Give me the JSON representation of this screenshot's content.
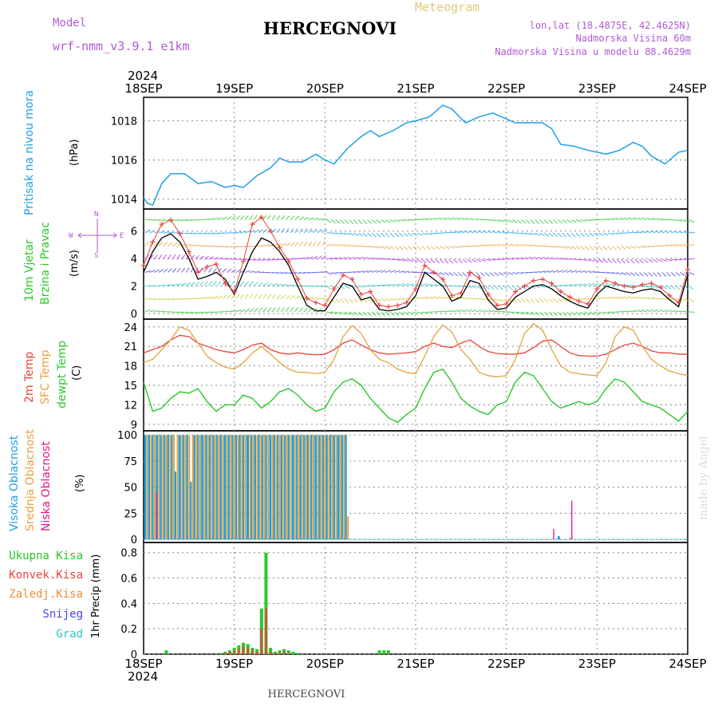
{
  "header": {
    "title": "HERCEGNOVI",
    "subtitle": "Meteogram",
    "model_label": "Model",
    "model_name": "wrf-nmm_v3.9.1 e1km",
    "lonlat": "lon,lat (18.4875E, 42.4625N)",
    "altitude": "Nadmorska Visina 60m",
    "model_altitude": "Nadmorska Visina u modelu 88.4629m",
    "year_top": "2024",
    "year_bottom": "2024",
    "footer": "HERCEGNOVI",
    "watermark": "made by Angel"
  },
  "colors": {
    "pressure": "#1ea0e6",
    "wind": "#000000",
    "gust": "#e8453c",
    "temp2m": "#e8453c",
    "sfc": "#e6a23c",
    "dewpt": "#28c828",
    "high_cloud": "#1ea0e6",
    "mid_cloud": "#e6a23c",
    "low_cloud": "#e6148c",
    "total_precip": "#28c828",
    "conv_precip": "#e8453c",
    "frozen_precip": "#f08c32",
    "snow": "#4646e6",
    "hail": "#28c8c8"
  },
  "chart_data": [
    {
      "type": "line",
      "panel": "pressure",
      "ylabel_left": "Pritisak na nivou mora",
      "unit": "(hPa)",
      "x_ticks": [
        "18SEP",
        "19SEP",
        "20SEP",
        "21SEP",
        "22SEP",
        "23SEP",
        "24SEP"
      ],
      "y_ticks": [
        1014,
        1016,
        1018
      ],
      "ylim": [
        1013.5,
        1019.2
      ],
      "grid": true,
      "x_days": [
        0.0,
        0.04,
        0.1,
        0.2,
        0.3,
        0.45,
        0.6,
        0.75,
        0.9,
        1.0,
        1.1,
        1.25,
        1.4,
        1.5,
        1.6,
        1.75,
        1.9,
        2.0,
        2.1,
        2.25,
        2.4,
        2.5,
        2.6,
        2.75,
        2.9,
        3.0,
        3.15,
        3.3,
        3.4,
        3.55,
        3.7,
        3.85,
        4.0,
        4.1,
        4.25,
        4.4,
        4.5,
        4.6,
        4.75,
        4.9,
        5.0,
        5.1,
        5.25,
        5.4,
        5.5,
        5.6,
        5.75,
        5.9,
        6.0
      ],
      "series": [
        {
          "values": [
            1014.1,
            1013.8,
            1013.7,
            1014.8,
            1015.3,
            1015.3,
            1014.8,
            1014.9,
            1014.6,
            1014.7,
            1014.6,
            1015.2,
            1015.6,
            1016.1,
            1015.9,
            1015.9,
            1016.3,
            1016.0,
            1015.8,
            1016.6,
            1017.2,
            1017.5,
            1017.2,
            1017.5,
            1017.9,
            1018.0,
            1018.2,
            1018.8,
            1018.6,
            1017.9,
            1018.2,
            1018.4,
            1018.1,
            1017.9,
            1017.9,
            1017.9,
            1017.6,
            1016.8,
            1016.7,
            1016.5,
            1016.4,
            1016.3,
            1016.5,
            1016.9,
            1016.7,
            1016.2,
            1015.8,
            1016.4,
            1016.5
          ]
        }
      ]
    },
    {
      "type": "line",
      "panel": "wind",
      "ylabel_left": "10m Vjetar",
      "ylabel_left2": "Brzina i Pravac",
      "unit": "(m/s)",
      "y_ticks": [
        0,
        2,
        4,
        6
      ],
      "ylim": [
        -0.4,
        7.6
      ],
      "compass": {
        "n": "N",
        "s": "S",
        "e": "E",
        "w": "W"
      },
      "x_days": [
        0.0,
        0.1,
        0.2,
        0.3,
        0.4,
        0.5,
        0.6,
        0.7,
        0.8,
        0.9,
        1.0,
        1.1,
        1.2,
        1.3,
        1.4,
        1.5,
        1.6,
        1.7,
        1.8,
        1.9,
        2.0,
        2.1,
        2.2,
        2.3,
        2.4,
        2.5,
        2.6,
        2.7,
        2.8,
        2.9,
        3.0,
        3.1,
        3.2,
        3.3,
        3.4,
        3.5,
        3.6,
        3.7,
        3.8,
        3.9,
        4.0,
        4.1,
        4.2,
        4.3,
        4.4,
        4.5,
        4.6,
        4.7,
        4.8,
        4.9,
        5.0,
        5.1,
        5.2,
        5.3,
        5.4,
        5.5,
        5.6,
        5.7,
        5.8,
        5.9,
        6.0
      ],
      "series": [
        {
          "name": "wind",
          "values": [
            3.0,
            4.5,
            5.5,
            5.8,
            5.2,
            4.0,
            2.5,
            2.7,
            3.0,
            2.5,
            1.4,
            3.0,
            4.5,
            5.5,
            5.2,
            4.5,
            3.5,
            2.0,
            0.6,
            0.2,
            0.2,
            1.2,
            2.2,
            2.0,
            1.0,
            1.2,
            0.3,
            0.2,
            0.3,
            0.5,
            1.3,
            3.0,
            2.5,
            2.0,
            0.9,
            1.2,
            2.4,
            2.2,
            1.0,
            0.3,
            0.4,
            1.2,
            1.6,
            2.0,
            2.1,
            1.8,
            1.3,
            0.9,
            0.6,
            0.4,
            1.4,
            2.0,
            1.8,
            1.6,
            1.5,
            1.7,
            1.8,
            1.6,
            1.0,
            0.5,
            2.8
          ]
        },
        {
          "name": "gust",
          "values": [
            3.5,
            5.2,
            6.5,
            6.8,
            5.8,
            4.5,
            3.0,
            3.4,
            3.6,
            2.2,
            1.6,
            3.8,
            6.5,
            7.0,
            6.0,
            4.8,
            3.8,
            2.5,
            1.1,
            0.8,
            0.6,
            1.8,
            2.8,
            2.5,
            1.4,
            1.6,
            0.6,
            0.5,
            0.6,
            0.8,
            1.8,
            3.5,
            3.0,
            2.5,
            1.3,
            1.5,
            3.0,
            2.6,
            1.4,
            0.6,
            0.7,
            1.6,
            2.0,
            2.4,
            2.5,
            2.2,
            1.6,
            1.2,
            0.9,
            0.7,
            1.8,
            2.4,
            2.2,
            2.0,
            1.9,
            2.1,
            2.2,
            1.9,
            1.3,
            0.8,
            3.2
          ]
        }
      ]
    },
    {
      "type": "line",
      "panel": "temperature",
      "ylabel_2m": "2m Temp",
      "ylabel_sfc": "SFC Temp",
      "ylabel_dew": "dewpt Temp",
      "unit": "(C)",
      "y_ticks": [
        9,
        12,
        15,
        18,
        21,
        24
      ],
      "ylim": [
        8.0,
        25.2
      ],
      "x_days": [
        0.0,
        0.1,
        0.2,
        0.3,
        0.4,
        0.5,
        0.6,
        0.7,
        0.8,
        0.9,
        1.0,
        1.1,
        1.2,
        1.3,
        1.4,
        1.5,
        1.6,
        1.7,
        1.8,
        1.9,
        2.0,
        2.1,
        2.2,
        2.3,
        2.4,
        2.5,
        2.6,
        2.7,
        2.8,
        2.9,
        3.0,
        3.1,
        3.2,
        3.3,
        3.4,
        3.5,
        3.6,
        3.7,
        3.8,
        3.9,
        4.0,
        4.1,
        4.2,
        4.3,
        4.4,
        4.5,
        4.6,
        4.7,
        4.8,
        4.9,
        5.0,
        5.1,
        5.2,
        5.3,
        5.4,
        5.5,
        5.6,
        5.7,
        5.8,
        5.9,
        6.0
      ],
      "series": [
        {
          "name": "2m",
          "values": [
            20.0,
            20.5,
            21.0,
            22.0,
            22.7,
            22.5,
            21.5,
            21.0,
            20.5,
            20.2,
            20.0,
            20.5,
            21.2,
            21.5,
            20.5,
            20.0,
            19.8,
            20.0,
            19.8,
            19.7,
            19.8,
            20.5,
            21.5,
            22.0,
            21.2,
            20.5,
            20.0,
            19.8,
            19.9,
            20.0,
            20.2,
            21.0,
            21.5,
            21.0,
            20.8,
            21.5,
            22.0,
            21.0,
            20.2,
            19.9,
            19.8,
            19.8,
            20.0,
            20.8,
            21.8,
            22.0,
            21.0,
            20.0,
            19.6,
            19.5,
            19.5,
            19.8,
            20.5,
            21.2,
            21.5,
            21.0,
            20.3,
            20.0,
            20.0,
            19.8,
            19.8
          ]
        },
        {
          "name": "SFC",
          "values": [
            18.5,
            19.0,
            20.5,
            22.0,
            24.0,
            23.5,
            21.5,
            19.5,
            18.5,
            17.8,
            17.5,
            18.5,
            20.0,
            21.0,
            19.8,
            18.5,
            17.5,
            17.0,
            17.0,
            16.8,
            17.0,
            19.0,
            22.5,
            24.2,
            23.0,
            20.5,
            19.0,
            18.5,
            17.5,
            17.0,
            16.8,
            19.5,
            22.5,
            24.3,
            23.2,
            20.5,
            19.0,
            17.0,
            16.5,
            16.3,
            16.5,
            19.0,
            23.0,
            24.5,
            23.5,
            20.5,
            18.0,
            17.0,
            16.8,
            16.6,
            16.5,
            18.5,
            22.5,
            24.0,
            23.5,
            21.0,
            19.0,
            18.0,
            17.2,
            16.8,
            16.5
          ]
        },
        {
          "name": "dewpt",
          "values": [
            15.5,
            11.0,
            11.5,
            13.0,
            14.0,
            13.8,
            14.5,
            12.5,
            11.0,
            12.0,
            12.0,
            13.5,
            13.0,
            11.5,
            12.5,
            14.0,
            14.5,
            13.5,
            12.0,
            11.0,
            11.5,
            14.0,
            15.5,
            16.0,
            15.0,
            13.0,
            11.5,
            10.0,
            9.3,
            10.5,
            11.5,
            14.5,
            17.0,
            17.5,
            15.5,
            13.0,
            11.8,
            11.0,
            10.5,
            12.0,
            12.5,
            15.5,
            17.0,
            16.5,
            14.5,
            12.5,
            11.5,
            12.0,
            12.5,
            12.0,
            12.5,
            14.5,
            16.0,
            15.5,
            14.0,
            12.5,
            12.0,
            11.5,
            10.5,
            9.5,
            11.0
          ]
        }
      ]
    },
    {
      "type": "bar",
      "panel": "clouds",
      "ylabel_high": "Visoka Oblacnost",
      "ylabel_mid": "Srednja Oblacnost",
      "ylabel_low": "Niska Oblacnost",
      "unit": "(%)",
      "y_ticks": [
        0,
        25,
        50,
        75,
        100
      ],
      "ylim": [
        -3,
        104
      ],
      "x_days": [
        0.04,
        0.08,
        0.12,
        0.17,
        0.21,
        0.25,
        0.29,
        0.33,
        0.37,
        0.42,
        0.46,
        0.5,
        0.54,
        0.58,
        0.62,
        0.67,
        0.71,
        0.75,
        0.79,
        0.83,
        0.87,
        0.92,
        0.96,
        1.0,
        1.04,
        1.08,
        1.12,
        1.17,
        1.21,
        1.25,
        1.29,
        1.33,
        1.37,
        1.42,
        1.46,
        1.5,
        1.54,
        1.58,
        1.62,
        1.67,
        1.71,
        1.75,
        1.79,
        1.83,
        1.87,
        1.92,
        1.96,
        2.0,
        2.04,
        2.08,
        2.12,
        2.17,
        2.21,
        2.25,
        4.5,
        4.6,
        4.7
      ],
      "series": [
        {
          "name": "high",
          "values": [
            100,
            100,
            100,
            100,
            100,
            100,
            100,
            100,
            65,
            100,
            100,
            100,
            55,
            100,
            100,
            100,
            100,
            100,
            100,
            100,
            100,
            100,
            100,
            100,
            100,
            100,
            100,
            100,
            100,
            100,
            100,
            100,
            100,
            100,
            100,
            100,
            100,
            100,
            100,
            100,
            100,
            100,
            100,
            100,
            100,
            100,
            100,
            100,
            100,
            100,
            100,
            100,
            100,
            100,
            0,
            3,
            0
          ]
        },
        {
          "name": "mid",
          "values": [
            100,
            100,
            100,
            100,
            100,
            100,
            100,
            100,
            100,
            100,
            100,
            100,
            100,
            100,
            100,
            100,
            100,
            100,
            100,
            100,
            100,
            100,
            100,
            100,
            100,
            100,
            100,
            100,
            100,
            100,
            100,
            100,
            100,
            100,
            100,
            100,
            100,
            100,
            100,
            100,
            100,
            100,
            100,
            100,
            100,
            100,
            100,
            100,
            100,
            100,
            100,
            100,
            100,
            22,
            0,
            0,
            2
          ]
        },
        {
          "name": "low",
          "values": [
            0,
            0,
            45,
            0,
            0,
            0,
            0,
            0,
            0,
            0,
            0,
            0,
            0,
            0,
            0,
            0,
            0,
            0,
            0,
            0,
            0,
            0,
            0,
            0,
            0,
            0,
            0,
            0,
            0,
            0,
            0,
            0,
            0,
            0,
            0,
            0,
            0,
            0,
            0,
            0,
            0,
            0,
            0,
            0,
            0,
            0,
            0,
            0,
            0,
            0,
            0,
            0,
            0,
            0,
            10,
            0,
            37
          ]
        }
      ]
    },
    {
      "type": "bar",
      "panel": "precip",
      "legend": [
        "Ukupna Kisa",
        "Konvek.Kisa",
        "Zaledj.Kisa",
        "Snijeg",
        "Grad"
      ],
      "ylabel": "1hr Precip (mm)",
      "y_ticks": [
        0,
        0.2,
        0.4,
        0.6,
        0.8
      ],
      "ylim": [
        0,
        0.88
      ],
      "x_ticks": [
        "18SEP",
        "19SEP",
        "20SEP",
        "21SEP",
        "22SEP",
        "23SEP",
        "24SEP"
      ],
      "x_days": [
        0.25,
        0.85,
        0.9,
        0.95,
        1.0,
        1.05,
        1.1,
        1.15,
        1.2,
        1.25,
        1.3,
        1.35,
        1.4,
        1.45,
        1.5,
        1.55,
        1.6,
        1.65,
        1.7,
        2.6,
        2.65,
        2.7
      ],
      "series": [
        {
          "name": "total",
          "values": [
            0.03,
            0.01,
            0.02,
            0.03,
            0.05,
            0.07,
            0.09,
            0.08,
            0.05,
            0.04,
            0.36,
            0.8,
            0.05,
            0.02,
            0.03,
            0.04,
            0.03,
            0.02,
            0.01,
            0.03,
            0.03,
            0.03
          ]
        },
        {
          "name": "convective",
          "values": [
            0.0,
            0.0,
            0.01,
            0.02,
            0.03,
            0.04,
            0.06,
            0.05,
            0.03,
            0.02,
            0.2,
            0.36,
            0.02,
            0.01,
            0.01,
            0.02,
            0.01,
            0.0,
            0.0,
            0.0,
            0.0,
            0.0
          ]
        }
      ]
    }
  ]
}
